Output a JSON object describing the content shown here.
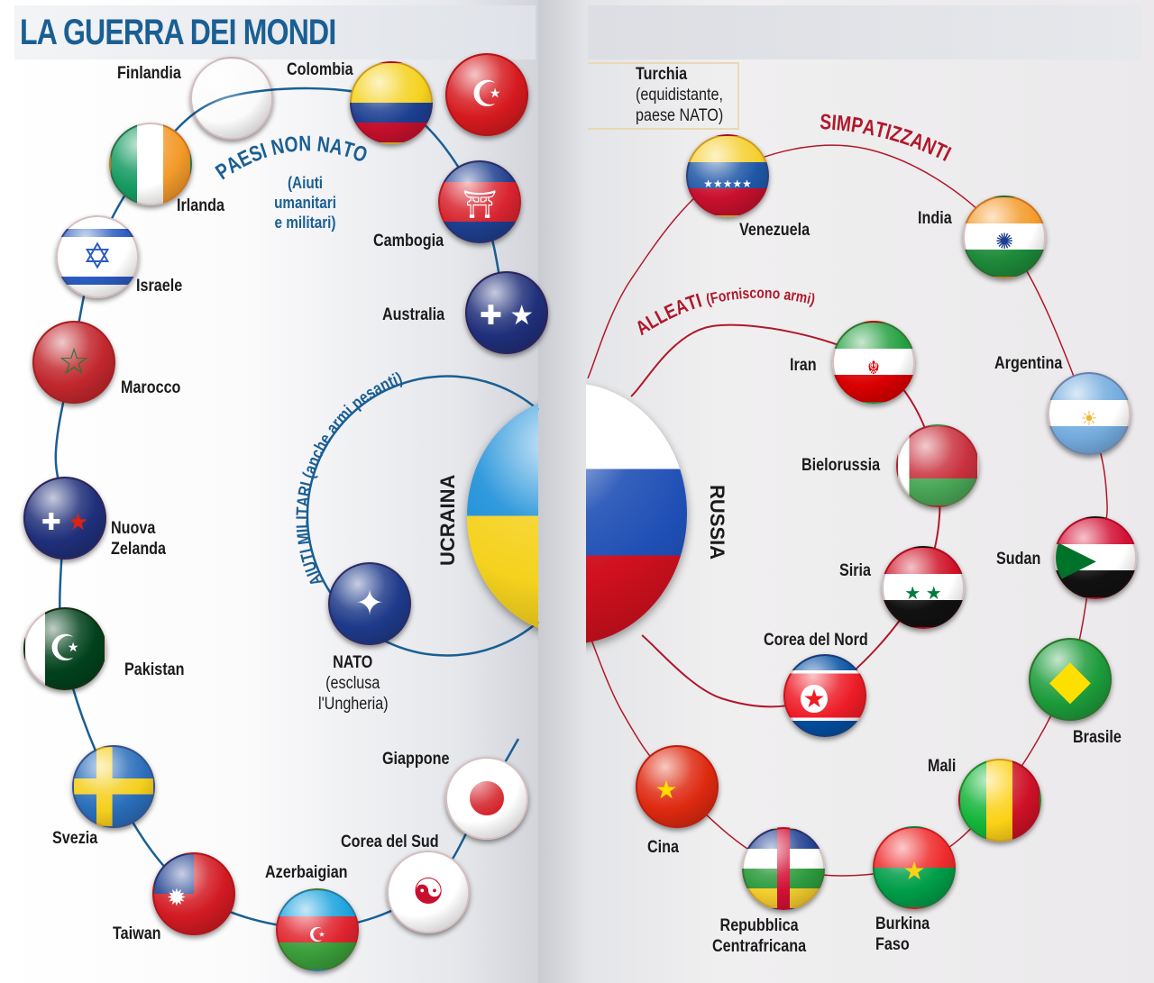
{
  "title": "LA GUERRA DEI MONDI",
  "left": {
    "ring_outer_title": "PAESI NON NATO",
    "ring_outer_subtitle": [
      "(Aiuti",
      "umanitari",
      "e militari)"
    ],
    "ring_inner_title": "AIUTI MILITARI (anche armi pesanti)",
    "center": "UCRAINA",
    "nato": {
      "name": "NATO",
      "note": [
        "(esclusa",
        "l'Ungheria)"
      ],
      "icon": "nato-compass-icon"
    },
    "countries": [
      {
        "name": "Finlandia",
        "flag": "fi"
      },
      {
        "name": "Colombia",
        "flag": "co"
      },
      {
        "name": "Irlanda",
        "flag": "ie"
      },
      {
        "name": "Cambogia",
        "flag": "kh"
      },
      {
        "name": "Israele",
        "flag": "il"
      },
      {
        "name": "Australia",
        "flag": "au"
      },
      {
        "name": "Marocco",
        "flag": "ma"
      },
      {
        "name": "Nuova Zelanda",
        "flag": "nz"
      },
      {
        "name": "Pakistan",
        "flag": "pk"
      },
      {
        "name": "Svezia",
        "flag": "se"
      },
      {
        "name": "Taiwan",
        "flag": "tw"
      },
      {
        "name": "Azerbaigian",
        "flag": "az"
      },
      {
        "name": "Corea del Sud",
        "flag": "kr"
      },
      {
        "name": "Giappone",
        "flag": "jp"
      }
    ]
  },
  "turchia": {
    "name": "Turchia",
    "note": [
      "(equidistante,",
      "paese NATO)"
    ],
    "flag": "tr"
  },
  "right": {
    "ring_outer_title": "SIMPATIZZANTI",
    "ring_inner_title": "ALLEATI",
    "ring_inner_subtitle": "(Forniscono armi)",
    "center": "RUSSIA",
    "countries": [
      {
        "name": "Venezuela",
        "flag": "ve"
      },
      {
        "name": "India",
        "flag": "in"
      },
      {
        "name": "Iran",
        "flag": "ir"
      },
      {
        "name": "Argentina",
        "flag": "ar"
      },
      {
        "name": "Bielorussia",
        "flag": "by"
      },
      {
        "name": "Sudan",
        "flag": "sd"
      },
      {
        "name": "Siria",
        "flag": "sy"
      },
      {
        "name": "Corea del Nord",
        "flag": "kp"
      },
      {
        "name": "Brasile",
        "flag": "br"
      },
      {
        "name": "Mali",
        "flag": "ml"
      },
      {
        "name": "Cina",
        "flag": "cn"
      },
      {
        "name": "Repubblica Centrafricana",
        "flag": "cf"
      },
      {
        "name": "Burkina Faso",
        "flag": "bf"
      }
    ]
  },
  "colors": {
    "left_accent": "#1a5f94",
    "right_accent": "#b0182a"
  }
}
